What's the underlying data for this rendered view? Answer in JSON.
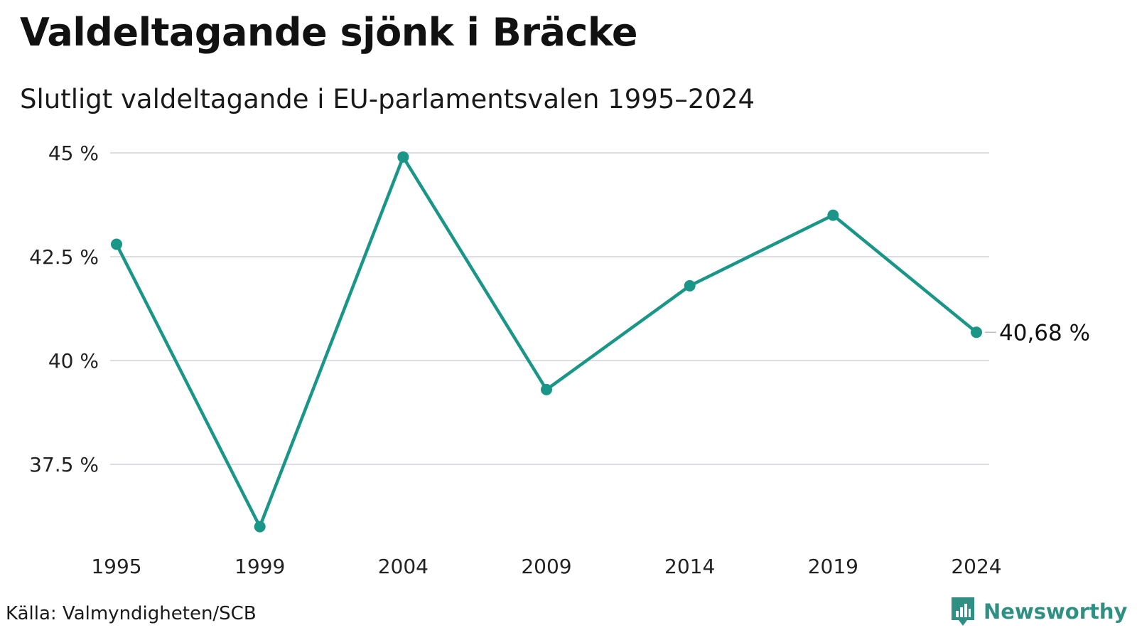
{
  "title": "Valdeltagande sjönk i Bräcke",
  "subtitle": "Slutligt valdeltagande i EU-parlamentsvalen 1995–2024",
  "source": "Källa: Valmyndigheten/SCB",
  "brand": {
    "name": "Newsworthy",
    "icon": "newsworthy-logo-icon",
    "color": "#2f8f83"
  },
  "chart_data": {
    "type": "line",
    "x": [
      "1995",
      "1999",
      "2004",
      "2009",
      "2014",
      "2019",
      "2024"
    ],
    "series": [
      {
        "values": [
          42.8,
          36.0,
          44.9,
          39.3,
          41.8,
          43.5,
          40.68
        ],
        "color": "#1a9688"
      }
    ],
    "ylim": [
      36,
      45
    ],
    "yticks": [
      {
        "value": 45,
        "label": "45 %"
      },
      {
        "value": 42.5,
        "label": "42.5 %"
      },
      {
        "value": 40,
        "label": "40 %"
      },
      {
        "value": 37.5,
        "label": "37.5 %"
      }
    ],
    "grid": true,
    "end_label": "40,68 %",
    "xlabel": "",
    "ylabel": ""
  }
}
